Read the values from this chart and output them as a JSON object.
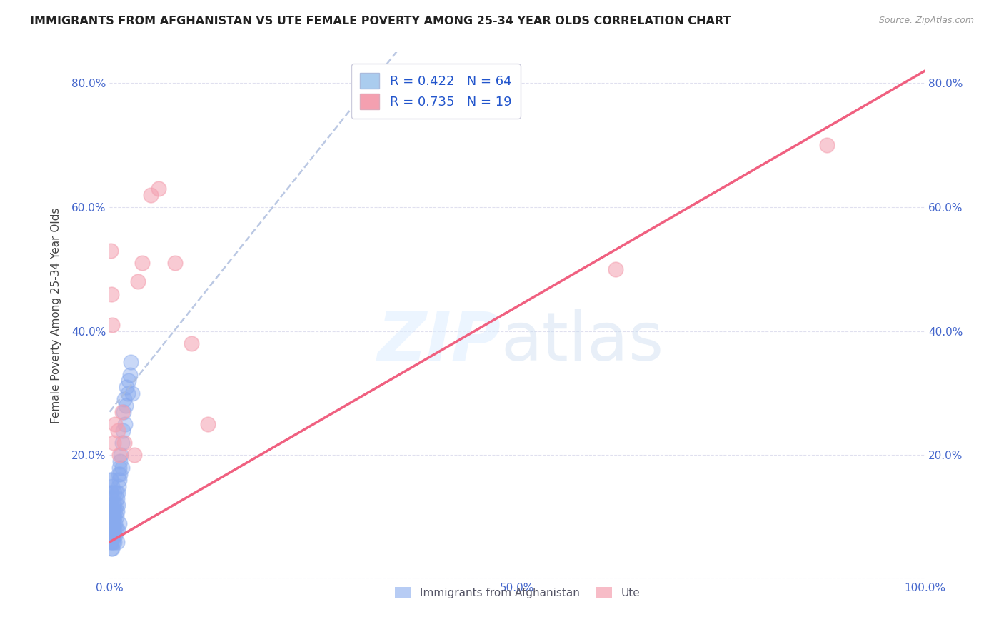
{
  "title": "IMMIGRANTS FROM AFGHANISTAN VS UTE FEMALE POVERTY AMONG 25-34 YEAR OLDS CORRELATION CHART",
  "source": "Source: ZipAtlas.com",
  "ylabel": "Female Poverty Among 25-34 Year Olds",
  "xlim": [
    0,
    1.0
  ],
  "ylim": [
    0,
    0.85
  ],
  "xticks": [
    0.0,
    0.1,
    0.2,
    0.3,
    0.4,
    0.5,
    0.6,
    0.7,
    0.8,
    0.9,
    1.0
  ],
  "xticklabels": [
    "0.0%",
    "",
    "",
    "",
    "",
    "50.0%",
    "",
    "",
    "",
    "",
    "100.0%"
  ],
  "yticks": [
    0.0,
    0.2,
    0.4,
    0.6,
    0.8
  ],
  "yticklabels": [
    "",
    "20.0%",
    "40.0%",
    "60.0%",
    "80.0%"
  ],
  "blue_color": "#88aaee",
  "pink_color": "#f4a0b0",
  "blue_line_color": "#aabbdd",
  "pink_line_color": "#f06080",
  "title_color": "#222222",
  "axis_color": "#4466cc",
  "legend_entries": [
    {
      "color": "#aaccee",
      "R": "0.422",
      "N": "64"
    },
    {
      "color": "#f4a0b0",
      "R": "0.735",
      "N": "19"
    }
  ],
  "blue_scatter_x": [
    0.001,
    0.001,
    0.001,
    0.002,
    0.002,
    0.002,
    0.002,
    0.003,
    0.003,
    0.003,
    0.003,
    0.004,
    0.004,
    0.004,
    0.005,
    0.005,
    0.005,
    0.006,
    0.006,
    0.006,
    0.006,
    0.007,
    0.007,
    0.008,
    0.008,
    0.008,
    0.009,
    0.009,
    0.01,
    0.01,
    0.011,
    0.011,
    0.012,
    0.012,
    0.013,
    0.013,
    0.014,
    0.015,
    0.015,
    0.016,
    0.017,
    0.018,
    0.019,
    0.02,
    0.021,
    0.022,
    0.023,
    0.025,
    0.026,
    0.028,
    0.001,
    0.001,
    0.001,
    0.002,
    0.002,
    0.003,
    0.004,
    0.005,
    0.006,
    0.007,
    0.008,
    0.009,
    0.01,
    0.012
  ],
  "blue_scatter_y": [
    0.12,
    0.14,
    0.16,
    0.1,
    0.12,
    0.14,
    0.16,
    0.09,
    0.11,
    0.13,
    0.15,
    0.08,
    0.1,
    0.12,
    0.07,
    0.09,
    0.11,
    0.08,
    0.1,
    0.12,
    0.14,
    0.09,
    0.11,
    0.1,
    0.12,
    0.14,
    0.11,
    0.13,
    0.12,
    0.14,
    0.15,
    0.17,
    0.16,
    0.18,
    0.17,
    0.19,
    0.2,
    0.22,
    0.18,
    0.24,
    0.27,
    0.29,
    0.25,
    0.28,
    0.31,
    0.3,
    0.32,
    0.33,
    0.35,
    0.3,
    0.06,
    0.07,
    0.08,
    0.05,
    0.06,
    0.05,
    0.06,
    0.07,
    0.06,
    0.07,
    0.08,
    0.06,
    0.08,
    0.09
  ],
  "pink_scatter_x": [
    0.001,
    0.002,
    0.003,
    0.005,
    0.007,
    0.01,
    0.012,
    0.015,
    0.018,
    0.03,
    0.035,
    0.04,
    0.05,
    0.06,
    0.08,
    0.1,
    0.12,
    0.88,
    0.62
  ],
  "pink_scatter_y": [
    0.53,
    0.46,
    0.41,
    0.22,
    0.25,
    0.24,
    0.2,
    0.27,
    0.22,
    0.2,
    0.48,
    0.51,
    0.62,
    0.63,
    0.51,
    0.38,
    0.25,
    0.7,
    0.5
  ],
  "blue_trend_y_intercept": 0.27,
  "blue_trend_slope": 1.65,
  "pink_trend_y_intercept": 0.06,
  "pink_trend_slope": 0.76,
  "legend_text_color": "#2255cc",
  "grid_color": "#ddddee",
  "bottom_legend": [
    "Immigrants from Afghanistan",
    "Ute"
  ]
}
